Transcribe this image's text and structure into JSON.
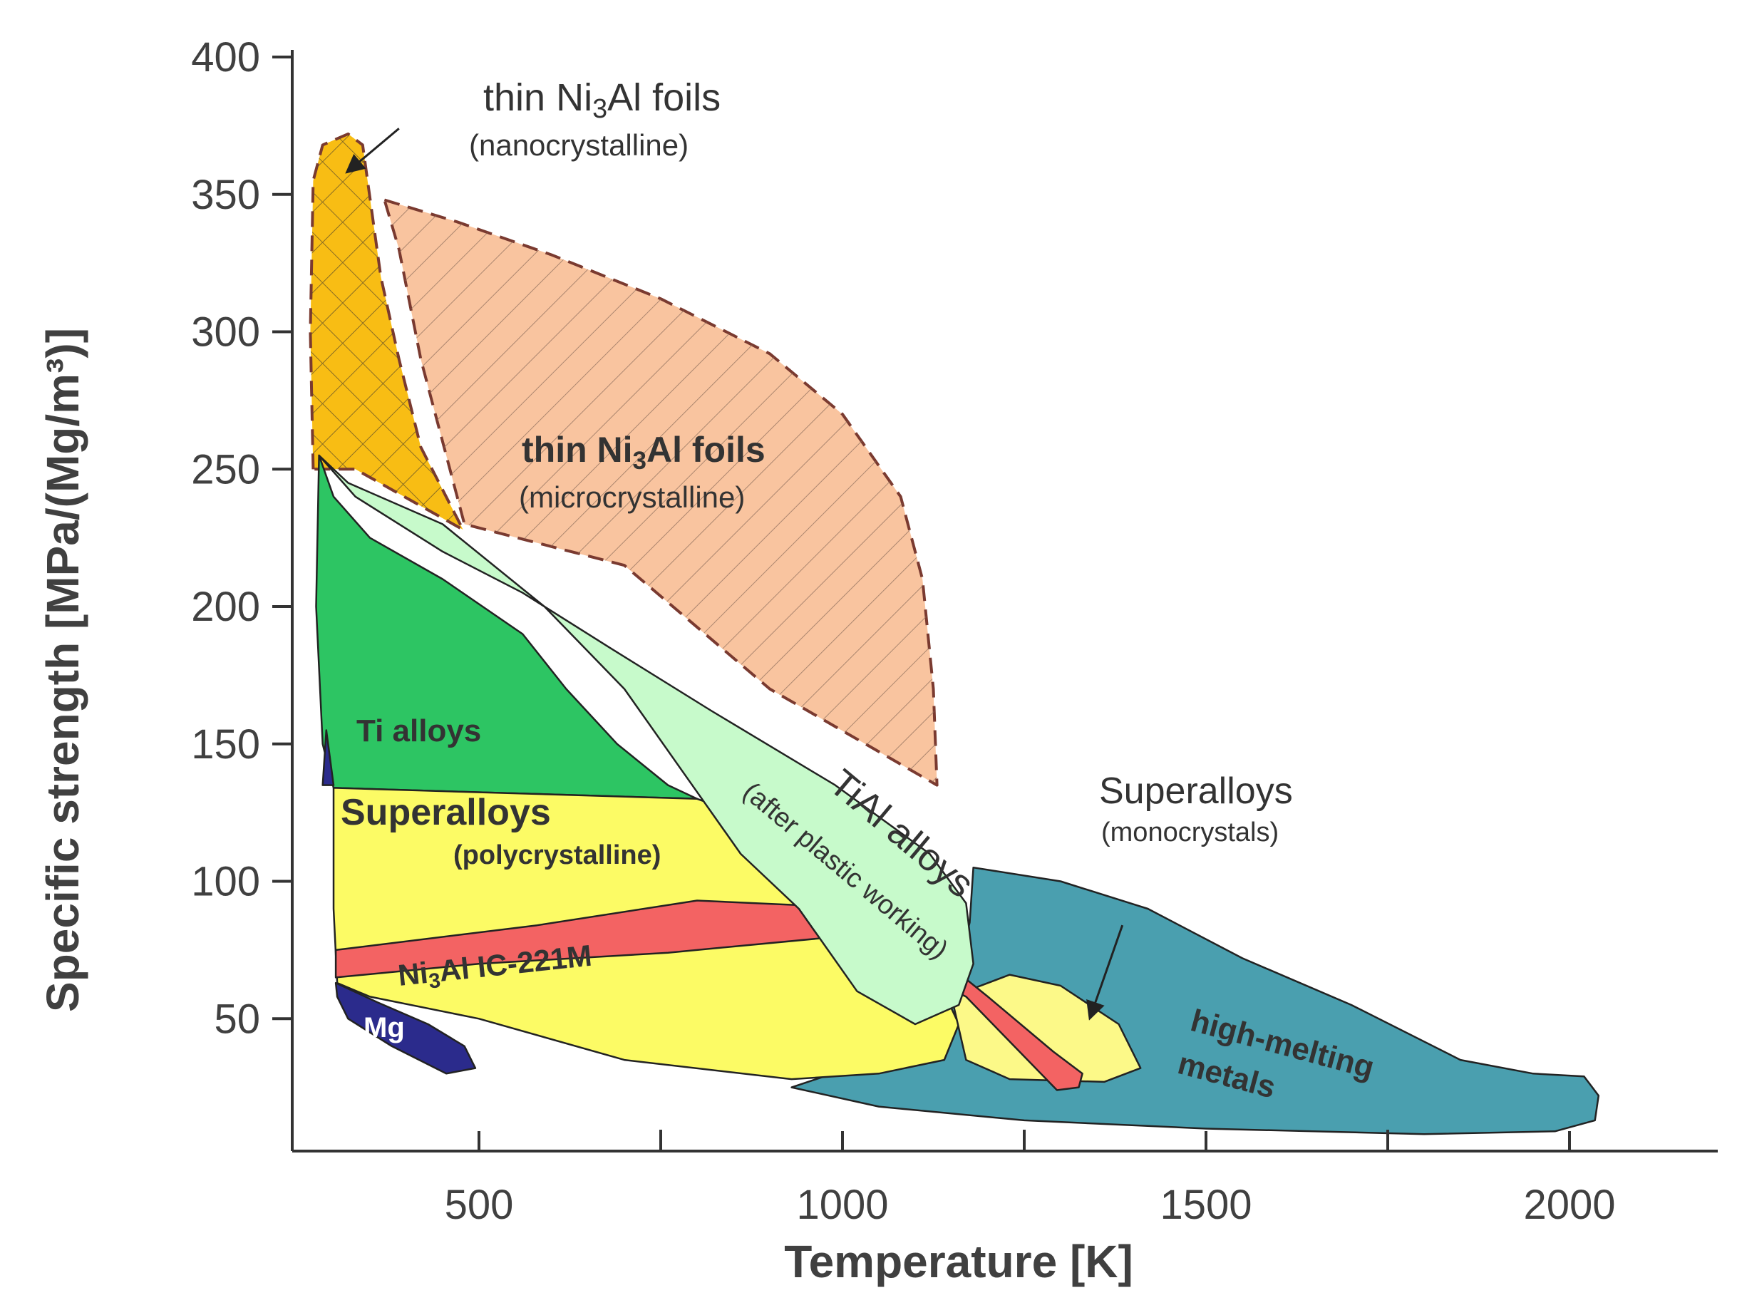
{
  "chart_data": {
    "type": "region",
    "title": "",
    "xlabel": "Temperature [K]",
    "ylabel": "Specific strength [MPa/(Mg/m³)]",
    "xlim": [
      250,
      2200
    ],
    "ylim": [
      0,
      400
    ],
    "x_ticks": [
      {
        "value": 500,
        "label": "500"
      },
      {
        "value": 1000,
        "label": "1000"
      },
      {
        "value": 1500,
        "label": "1500"
      },
      {
        "value": 2000,
        "label": "2000"
      }
    ],
    "x_minor_ticks": [
      750,
      1250,
      1750
    ],
    "y_ticks": [
      {
        "value": 50,
        "label": "50"
      },
      {
        "value": 100,
        "label": "100"
      },
      {
        "value": 150,
        "label": "150"
      },
      {
        "value": 200,
        "label": "200"
      },
      {
        "value": 250,
        "label": "250"
      },
      {
        "value": 300,
        "label": "300"
      },
      {
        "value": 350,
        "label": "350"
      },
      {
        "value": 400,
        "label": "400"
      }
    ],
    "regions": [
      {
        "id": "micro",
        "name": "thin Ni3Al foils (microcrystalline)",
        "color": "#F9C49F",
        "border": "dashed",
        "hatch": "single",
        "points": [
          [
            370,
            348
          ],
          [
            470,
            340
          ],
          [
            600,
            328
          ],
          [
            750,
            312
          ],
          [
            900,
            292
          ],
          [
            1000,
            270
          ],
          [
            1080,
            240
          ],
          [
            1110,
            210
          ],
          [
            1125,
            170
          ],
          [
            1130,
            135
          ],
          [
            900,
            170
          ],
          [
            700,
            215
          ],
          [
            480,
            230
          ],
          [
            420,
            290
          ],
          [
            390,
            330
          ]
        ]
      },
      {
        "id": "nano",
        "name": "thin Ni3Al foils (nanocrystalline)",
        "color": "#F8BD14",
        "border": "dashed",
        "hatch": "cross",
        "points": [
          [
            272,
            250
          ],
          [
            268,
            300
          ],
          [
            272,
            355
          ],
          [
            285,
            368
          ],
          [
            320,
            372
          ],
          [
            340,
            368
          ],
          [
            352,
            345
          ],
          [
            365,
            320
          ],
          [
            390,
            290
          ],
          [
            420,
            258
          ],
          [
            478,
            228
          ],
          [
            330,
            250
          ]
        ]
      },
      {
        "id": "high_melting",
        "name": "high-melting metals",
        "color": "#4A9FAF",
        "points": [
          [
            1180,
            105
          ],
          [
            1300,
            100
          ],
          [
            1420,
            90
          ],
          [
            1550,
            72
          ],
          [
            1700,
            55
          ],
          [
            1850,
            35
          ],
          [
            1950,
            30
          ],
          [
            2020,
            29
          ],
          [
            2040,
            22
          ],
          [
            2035,
            13
          ],
          [
            1980,
            9
          ],
          [
            1800,
            8
          ],
          [
            1500,
            10
          ],
          [
            1250,
            13
          ],
          [
            1050,
            18
          ],
          [
            930,
            25
          ],
          [
            1100,
            40
          ],
          [
            1150,
            60
          ],
          [
            1175,
            85
          ]
        ]
      },
      {
        "id": "ti_alloys",
        "name": "Ti alloys",
        "color": "#2DC563",
        "points": [
          [
            280,
            255
          ],
          [
            300,
            240
          ],
          [
            350,
            225
          ],
          [
            450,
            210
          ],
          [
            560,
            190
          ],
          [
            620,
            170
          ],
          [
            690,
            150
          ],
          [
            760,
            135
          ],
          [
            800,
            130
          ],
          [
            300,
            134
          ],
          [
            285,
            150
          ],
          [
            276,
            200
          ]
        ]
      },
      {
        "id": "superalloys_poly",
        "name": "Superalloys (polycrystalline)",
        "color": "#FCFB65",
        "points": [
          [
            300,
            134
          ],
          [
            800,
            130
          ],
          [
            960,
            115
          ],
          [
            1040,
            90
          ],
          [
            1130,
            65
          ],
          [
            1160,
            48
          ],
          [
            1140,
            35
          ],
          [
            1050,
            30
          ],
          [
            930,
            28
          ],
          [
            700,
            35
          ],
          [
            500,
            50
          ],
          [
            350,
            58
          ],
          [
            305,
            63
          ],
          [
            300,
            90
          ]
        ]
      },
      {
        "id": "superalloys_mono",
        "name": "Superalloys (monocrystals)",
        "color": "#FCF988",
        "points": [
          [
            1150,
            58
          ],
          [
            1230,
            66
          ],
          [
            1300,
            62
          ],
          [
            1380,
            48
          ],
          [
            1410,
            32
          ],
          [
            1360,
            27
          ],
          [
            1230,
            28
          ],
          [
            1170,
            35
          ]
        ]
      },
      {
        "id": "ni3al",
        "name": "Ni3Al IC-221M",
        "color": "#F36363",
        "points": [
          [
            303,
            75
          ],
          [
            580,
            84
          ],
          [
            800,
            93
          ],
          [
            1050,
            90
          ],
          [
            1200,
            58
          ],
          [
            1290,
            38
          ],
          [
            1330,
            30
          ],
          [
            1325,
            25
          ],
          [
            1295,
            24
          ],
          [
            1170,
            58
          ],
          [
            1000,
            80
          ],
          [
            760,
            74
          ],
          [
            500,
            70
          ],
          [
            303,
            65
          ]
        ]
      },
      {
        "id": "tial",
        "name": "TiAl alloys (after plastic working)",
        "color": "#C7FACB",
        "points": [
          [
            280,
            255
          ],
          [
            330,
            240
          ],
          [
            450,
            220
          ],
          [
            560,
            205
          ],
          [
            680,
            185
          ],
          [
            820,
            162
          ],
          [
            990,
            135
          ],
          [
            1120,
            110
          ],
          [
            1170,
            92
          ],
          [
            1180,
            70
          ],
          [
            1160,
            55
          ],
          [
            1100,
            48
          ],
          [
            1020,
            60
          ],
          [
            940,
            90
          ],
          [
            860,
            110
          ],
          [
            780,
            140
          ],
          [
            700,
            170
          ],
          [
            590,
            200
          ],
          [
            450,
            230
          ],
          [
            320,
            245
          ]
        ]
      },
      {
        "id": "mg",
        "name": "Mg",
        "color": "#2B2B8C",
        "points": [
          [
            303,
            63
          ],
          [
            360,
            56
          ],
          [
            430,
            48
          ],
          [
            480,
            40
          ],
          [
            495,
            32
          ],
          [
            455,
            30
          ],
          [
            380,
            40
          ],
          [
            320,
            50
          ],
          [
            305,
            58
          ]
        ]
      },
      {
        "id": "mg_sliver",
        "name": "",
        "color": "#2B2B8C",
        "points": [
          [
            290,
            155
          ],
          [
            300,
            135
          ],
          [
            285,
            135
          ]
        ]
      }
    ],
    "annotations": [
      {
        "target": "nano",
        "label": "thin Ni3Al foils (nanocrystalline)",
        "arrow_from": [
          390,
          374
        ],
        "arrow_to": [
          318,
          358
        ]
      },
      {
        "target": "superalloys_mono",
        "label": "Superalloys (monocrystals)",
        "arrow_from": [
          1385,
          84
        ],
        "arrow_to": [
          1340,
          50
        ]
      }
    ]
  },
  "labels": {
    "nano_main": "thin Ni",
    "nano_sub": "3",
    "nano_tail": "Al foils",
    "nano_paren": "(nanocrystalline)",
    "micro_main": "thin Ni",
    "micro_sub": "3",
    "micro_tail": "Al foils",
    "micro_paren": "(microcrystalline)",
    "ti": "Ti alloys",
    "superalloys_poly_main": "Superalloys",
    "superalloys_poly_paren": "(polycrystalline)",
    "ni3al_main": "Ni",
    "ni3al_sub": "3",
    "ni3al_tail": "Al IC-221M",
    "mg": "Mg",
    "tial_main": "TiAl alloys",
    "tial_paren": "(after plastic working)",
    "superalloys_mono_main": "Superalloys",
    "superalloys_mono_paren": "(monocrystals)",
    "high_melting_1": "high-melting",
    "high_melting_2": "metals"
  },
  "colors": {
    "axis": "#333333",
    "tick_text": "#404040",
    "dashed_border": "#7A3A30"
  }
}
